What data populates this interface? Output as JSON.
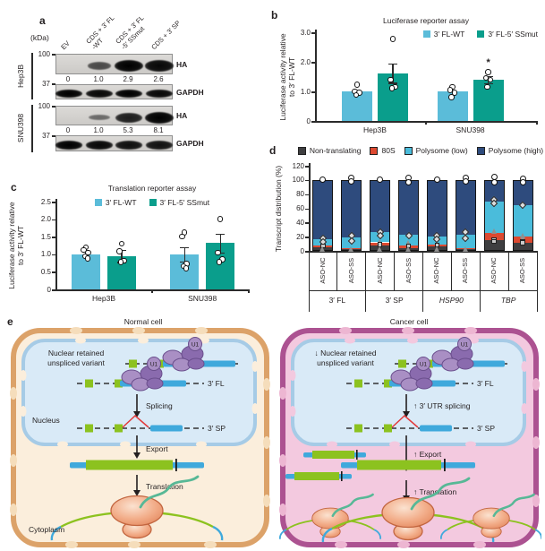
{
  "colors": {
    "bar_blue": "#5BBCD9",
    "bar_teal": "#0A9E8C",
    "d_non": "#3E3E40",
    "d_80s": "#DD4930",
    "d_low": "#4ABCDB",
    "d_high": "#2E4B7D",
    "cell_normal_border": "#DCA269",
    "cell_normal_fill": "#FBEEDC",
    "cell_normal_pore": "#F5DDBB",
    "cell_cancer_border": "#AC5291",
    "cell_cancer_fill": "#F3C9DF",
    "cell_cancer_pore": "#EDB6D2",
    "nucleus_border": "#A6CBE6",
    "nucleus_fill": "#D9EAF7",
    "exon_green": "#8CC21F",
    "rna_blue": "#3FA9DC",
    "u1_fill": "#A98FC4",
    "u1_dark": "#8A6BAE",
    "u1_stroke": "#6A4E8C",
    "splice_red": "#E23A3A",
    "ribo_stroke": "#C2653F",
    "protein_teal": "#57B896"
  },
  "panels": {
    "a": "a",
    "b": "b",
    "c": "c",
    "d": "d",
    "e": "e"
  },
  "panel_a": {
    "kda_label": "(kDa)",
    "lane_labels": [
      "EV",
      "CDS + 3′ FL\n-WT",
      "CDS + 3′ FL\n-5′ SSmut",
      "CDS + 3′ SP"
    ],
    "groups": [
      {
        "cell_line": "Hep3B",
        "ha": {
          "marker": "100",
          "label": "HA",
          "intensities": [
            0,
            0.5,
            1.0,
            0.95
          ]
        },
        "values": [
          "0",
          "1.0",
          "2.9",
          "2.6"
        ],
        "gapdh": {
          "marker": "37",
          "label": "GAPDH",
          "intensities": [
            1,
            0.95,
            1,
            0.95
          ]
        }
      },
      {
        "cell_line": "SNU398",
        "ha": {
          "marker": "100",
          "label": "HA",
          "intensities": [
            0,
            0.28,
            0.8,
            1.0
          ]
        },
        "values": [
          "0",
          "1.0",
          "5.3",
          "8.1"
        ],
        "gapdh": {
          "marker": "37",
          "label": "GAPDH",
          "intensities": [
            1,
            0.95,
            0.9,
            0.88
          ]
        }
      }
    ]
  },
  "chart_data": [
    {
      "id": "chartB",
      "type": "bar",
      "title": "Luciferase reporter assay",
      "ylabel": "Luciferase activity relative\nto 3′ FL-WT",
      "ylim": [
        0,
        3
      ],
      "yticks": [
        {
          "v": 0,
          "label": "0"
        },
        {
          "v": 1,
          "label": "1.0"
        },
        {
          "v": 2,
          "label": "2.0"
        },
        {
          "v": 3,
          "label": "3.0"
        }
      ],
      "categories": [
        "Hep3B",
        "SNU398"
      ],
      "series": [
        {
          "name": "3′ FL-WT",
          "color_key": "bar_blue",
          "values": [
            1.0,
            1.0
          ],
          "errors": [
            0,
            0
          ],
          "points": [
            [
              1.22,
              1.0,
              0.95,
              0.88
            ],
            [
              1.15,
              1.05,
              0.95,
              0.8
            ]
          ]
        },
        {
          "name": "3′ FL-5′ SSmut",
          "color_key": "bar_teal",
          "values": [
            1.62,
            1.4
          ],
          "errors": [
            0.33,
            0.13
          ],
          "points": [
            [
              2.78,
              1.4,
              1.15,
              1.1
            ],
            [
              1.65,
              1.45,
              1.4,
              1.15
            ]
          ]
        }
      ],
      "annotations": [
        {
          "text": "*",
          "category": 1,
          "series": 1,
          "v": 1.95
        }
      ]
    },
    {
      "id": "chartC",
      "type": "bar",
      "title": "Translation reporter assay",
      "ylabel": "Luciferase activity relative\nto 3′ FL-WT",
      "ylim": [
        0,
        2.5
      ],
      "yticks": [
        {
          "v": 0,
          "label": "0"
        },
        {
          "v": 0.5,
          "label": "0.5"
        },
        {
          "v": 1.0,
          "label": "1.0"
        },
        {
          "v": 1.5,
          "label": "1.5"
        },
        {
          "v": 2.0,
          "label": "2.0"
        },
        {
          "v": 2.5,
          "label": "2.5"
        }
      ],
      "categories": [
        "Hep3B",
        "SNU398"
      ],
      "series": [
        {
          "name": "3′ FL-WT",
          "color_key": "bar_blue",
          "values": [
            1.0,
            1.0
          ],
          "errors": [
            0,
            0.21
          ],
          "points": [
            [
              1.2,
              1.12,
              1.05,
              0.95,
              0.88
            ],
            [
              1.62,
              1.5,
              0.73,
              0.66,
              0.6
            ]
          ]
        },
        {
          "name": "3′ FL-5′ SSmut",
          "color_key": "bar_teal",
          "values": [
            0.95,
            1.32
          ],
          "errors": [
            0.17,
            0.27
          ],
          "points": [
            [
              1.3,
              1.08,
              0.82,
              0.78
            ],
            [
              2.0,
              1.05,
              0.86,
              0.78
            ]
          ]
        }
      ],
      "annotations": []
    },
    {
      "id": "chartD",
      "type": "stacked-bar",
      "ylabel": "Transcript distribution (%)",
      "ylim": [
        0,
        120
      ],
      "yticks": [
        {
          "v": 0,
          "label": "0"
        },
        {
          "v": 20,
          "label": "20"
        },
        {
          "v": 40,
          "label": "40"
        },
        {
          "v": 60,
          "label": "60"
        },
        {
          "v": 80,
          "label": "80"
        },
        {
          "v": 100,
          "label": "100"
        },
        {
          "v": 120,
          "label": "120"
        }
      ],
      "segments": [
        {
          "name": "Non-translating",
          "color_key": "d_non"
        },
        {
          "name": "80S",
          "color_key": "d_80s"
        },
        {
          "name": "Polysome (low)",
          "color_key": "d_low"
        },
        {
          "name": "Polysome (high)",
          "color_key": "d_high"
        }
      ],
      "groups": [
        {
          "label": "3′ FL",
          "italic": false
        },
        {
          "label": "3′ SP",
          "italic": false
        },
        {
          "label": "HSP90",
          "italic": true
        },
        {
          "label": "TBP",
          "italic": true
        }
      ],
      "bars": [
        {
          "label": "ASO-NC",
          "segments": [
            5,
            3,
            9,
            83
          ],
          "markers": [
            [
              "circle",
              100
            ],
            [
              "diamond",
              18
            ],
            [
              "diamond",
              13
            ],
            [
              "square",
              7
            ],
            [
              "triangle",
              3
            ]
          ]
        },
        {
          "label": "ASO-SS",
          "segments": [
            2,
            2,
            15,
            81
          ],
          "markers": [
            [
              "circle",
              103
            ],
            [
              "circle",
              98
            ],
            [
              "diamond",
              21
            ],
            [
              "diamond",
              14
            ],
            [
              "triangle",
              3
            ]
          ]
        },
        {
          "label": "ASO-NC",
          "segments": [
            8,
            4,
            14,
            74
          ],
          "markers": [
            [
              "circle",
              100
            ],
            [
              "diamond",
              27
            ],
            [
              "diamond",
              21
            ],
            [
              "triangle",
              13
            ],
            [
              "square",
              9
            ],
            [
              "triangle",
              3
            ]
          ]
        },
        {
          "label": "ASO-SS",
          "segments": [
            4,
            3,
            16,
            77
          ],
          "markers": [
            [
              "circle",
              103
            ],
            [
              "circle",
              97
            ],
            [
              "diamond",
              22
            ],
            [
              "triangle",
              11
            ],
            [
              "square",
              7
            ],
            [
              "triangle",
              3
            ]
          ]
        },
        {
          "label": "ASO-NC",
          "segments": [
            6,
            3,
            11,
            80
          ],
          "markers": [
            [
              "circle",
              100
            ],
            [
              "diamond",
              21
            ],
            [
              "diamond",
              16
            ],
            [
              "square",
              8
            ],
            [
              "triangle",
              3
            ]
          ]
        },
        {
          "label": "ASO-SS",
          "segments": [
            2,
            2,
            19,
            77
          ],
          "markers": [
            [
              "circle",
              103
            ],
            [
              "circle",
              98
            ],
            [
              "diamond",
              27
            ],
            [
              "diamond",
              18
            ],
            [
              "triangle",
              3
            ]
          ]
        },
        {
          "label": "ASO-NC",
          "segments": [
            15,
            10,
            45,
            30
          ],
          "markers": [
            [
              "circle",
              104
            ],
            [
              "circle",
              97
            ],
            [
              "diamond",
              72
            ],
            [
              "diamond",
              67
            ],
            [
              "triangle",
              28
            ],
            [
              "square",
              16
            ],
            [
              "square",
              13
            ]
          ]
        },
        {
          "label": "ASO-SS",
          "segments": [
            11,
            9,
            45,
            35
          ],
          "markers": [
            [
              "circle",
              102
            ],
            [
              "circle",
              97
            ],
            [
              "diamond",
              65
            ],
            [
              "triangle",
              22
            ],
            [
              "triangle",
              18
            ],
            [
              "square",
              13
            ],
            [
              "square",
              11
            ]
          ]
        }
      ]
    }
  ],
  "panel_e": {
    "normal": {
      "title": "Normal cell",
      "retained_line1": "Nuclear retained",
      "retained_line2": "unspliced variant",
      "u1_label": "U1",
      "fl_label": "3′ FL",
      "splicing_label": "Splicing",
      "nucleus_label": "Nucleus",
      "sp_label": "3′ SP",
      "export_label": "Export",
      "translation_label": "Translation",
      "cytoplasm_label": "Cytoplasm"
    },
    "cancer": {
      "title": "Cancer cell",
      "retained_line1": "↓ Nuclear retained",
      "retained_line2": "unspliced variant",
      "u1_label": "U1",
      "fl_label": "3′ FL",
      "splicing_label": "↑ 3′ UTR splicing",
      "sp_label": "3′ SP",
      "export_label": "↑ Export",
      "translation_label": "↑ Translation"
    }
  }
}
